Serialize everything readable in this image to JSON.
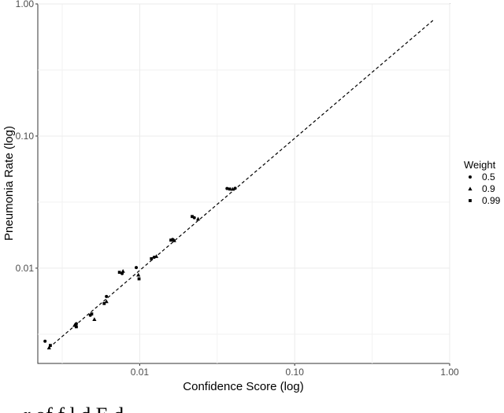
{
  "chart_data": {
    "type": "scatter",
    "xlabel": "Confidence Score (log)",
    "ylabel": "Pneumonia Rate (log)",
    "x_scale": "log",
    "y_scale": "log",
    "xlim": [
      0.0022,
      1.0
    ],
    "ylim": [
      0.0019,
      1.0
    ],
    "x_ticks": [
      0.01,
      0.1,
      1.0
    ],
    "x_tick_labels": [
      "0.01",
      "0.10",
      "1.00"
    ],
    "y_ticks": [
      0.01,
      0.1,
      1.0
    ],
    "y_tick_labels": [
      "0.01",
      "0.10",
      "1.00"
    ],
    "grid": true,
    "legend": {
      "title": "Weight",
      "position": "right"
    },
    "reference_line": {
      "style": "dashed",
      "from": [
        0.0026,
        0.0025
      ],
      "to": [
        0.78,
        0.75
      ]
    },
    "series": [
      {
        "name": "0.5",
        "marker": "circle",
        "points": [
          [
            0.00245,
            0.0028
          ],
          [
            0.0039,
            0.0038
          ],
          [
            0.0048,
            0.0044
          ],
          [
            0.0061,
            0.0061
          ],
          [
            0.0077,
            0.0091
          ],
          [
            0.0095,
            0.0101
          ],
          [
            0.0124,
            0.0121
          ],
          [
            0.0163,
            0.0165
          ],
          [
            0.0225,
            0.0241
          ],
          [
            0.0366,
            0.0401
          ],
          [
            0.0413,
            0.0402
          ]
        ]
      },
      {
        "name": "0.9",
        "marker": "triangle",
        "points": [
          [
            0.0026,
            0.0025
          ],
          [
            0.0038,
            0.0037
          ],
          [
            0.0051,
            0.0041
          ],
          [
            0.0061,
            0.0056
          ],
          [
            0.0078,
            0.0095
          ],
          [
            0.0098,
            0.0089
          ],
          [
            0.0128,
            0.0123
          ],
          [
            0.0167,
            0.0162
          ],
          [
            0.0238,
            0.0236
          ],
          [
            0.0398,
            0.0397
          ]
        ]
      },
      {
        "name": "0.99",
        "marker": "square",
        "points": [
          [
            0.00265,
            0.0026
          ],
          [
            0.0039,
            0.0036
          ],
          [
            0.0049,
            0.0045
          ],
          [
            0.0059,
            0.0054
          ],
          [
            0.0074,
            0.0093
          ],
          [
            0.0099,
            0.0083
          ],
          [
            0.0119,
            0.0118
          ],
          [
            0.0159,
            0.0163
          ],
          [
            0.0218,
            0.0246
          ],
          [
            0.0381,
            0.0397
          ]
        ]
      }
    ]
  },
  "caption_fragment": "r    of       f                 l d          E  d   "
}
